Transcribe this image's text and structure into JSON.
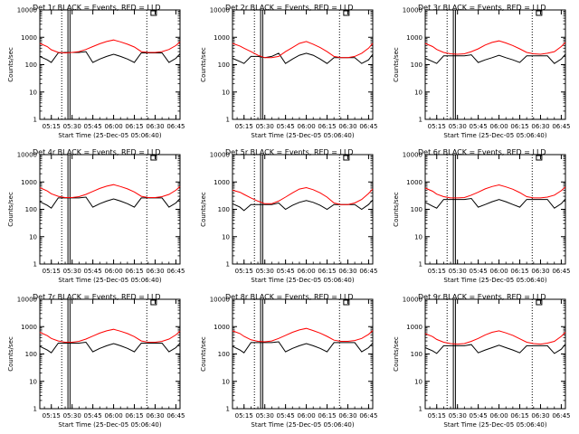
{
  "figure": {
    "title_suffix": " BLACK = Events, RED = LLD",
    "xlabel": "Start Time (25-Dec-05 05:06:40)",
    "ylabel": "Counts/sec",
    "xticks": [
      "05:15",
      "05:30",
      "05:45",
      "06:00",
      "06:15",
      "06:30",
      "06:45"
    ],
    "yticks": [
      "1",
      "10",
      "100",
      "1000",
      "10000"
    ],
    "colors": {
      "events": "#000000",
      "lld": "#ff0000"
    }
  },
  "chart_data": [
    {
      "type": "line",
      "title": "Det 1r",
      "ylim": [
        1,
        10000
      ],
      "yscale": "log",
      "x": [
        "05:06:40",
        "05:12",
        "05:15",
        "05:20",
        "05:25",
        "05:30",
        "05:35",
        "05:40",
        "05:45",
        "05:50",
        "05:55",
        "06:00",
        "06:05",
        "06:10",
        "06:15",
        "06:20",
        "06:25",
        "06:30",
        "06:35",
        "06:40",
        "06:45",
        "06:48"
      ],
      "series": [
        {
          "name": "Events",
          "values": [
            200,
            150,
            120,
            270,
            280,
            280,
            280,
            300,
            120,
            160,
            200,
            240,
            200,
            160,
            120,
            270,
            270,
            270,
            270,
            120,
            170,
            250
          ]
        },
        {
          "name": "LLD",
          "values": [
            600,
            460,
            350,
            280,
            270,
            280,
            300,
            360,
            460,
            580,
            700,
            800,
            680,
            560,
            440,
            300,
            280,
            280,
            300,
            360,
            500,
            680
          ]
        }
      ]
    },
    {
      "type": "line",
      "title": "Det 2r",
      "ylim": [
        1,
        10000
      ],
      "yscale": "log",
      "x": [
        "05:06:40",
        "05:12",
        "05:15",
        "05:20",
        "05:25",
        "05:30",
        "05:35",
        "05:40",
        "05:45",
        "05:50",
        "05:55",
        "06:00",
        "06:05",
        "06:10",
        "06:15",
        "06:20",
        "06:25",
        "06:30",
        "06:35",
        "06:40",
        "06:45",
        "06:48"
      ],
      "series": [
        {
          "name": "Events",
          "values": [
            170,
            130,
            110,
            200,
            200,
            180,
            200,
            260,
            110,
            160,
            220,
            260,
            220,
            160,
            110,
            180,
            180,
            180,
            180,
            110,
            150,
            240
          ]
        },
        {
          "name": "LLD",
          "values": [
            600,
            480,
            400,
            300,
            220,
            180,
            180,
            200,
            300,
            420,
            600,
            700,
            560,
            420,
            300,
            200,
            180,
            180,
            200,
            260,
            400,
            600
          ]
        }
      ]
    },
    {
      "type": "line",
      "title": "Det 3r",
      "ylim": [
        1,
        10000
      ],
      "yscale": "log",
      "x": [
        "05:06:40",
        "05:12",
        "05:15",
        "05:20",
        "05:25",
        "05:30",
        "05:35",
        "05:40",
        "05:45",
        "05:50",
        "05:55",
        "06:00",
        "06:05",
        "06:10",
        "06:15",
        "06:20",
        "06:25",
        "06:30",
        "06:35",
        "06:40",
        "06:45",
        "06:48"
      ],
      "series": [
        {
          "name": "Events",
          "values": [
            170,
            130,
            110,
            210,
            210,
            210,
            210,
            230,
            120,
            150,
            180,
            220,
            180,
            150,
            120,
            210,
            210,
            210,
            210,
            110,
            160,
            240
          ]
        },
        {
          "name": "LLD",
          "values": [
            600,
            460,
            360,
            280,
            250,
            240,
            250,
            300,
            380,
            520,
            650,
            740,
            620,
            500,
            380,
            280,
            250,
            240,
            260,
            300,
            460,
            650
          ]
        }
      ]
    },
    {
      "type": "line",
      "title": "Det 4r",
      "ylim": [
        1,
        10000
      ],
      "yscale": "log",
      "x": [
        "05:06:40",
        "05:12",
        "05:15",
        "05:20",
        "05:25",
        "05:30",
        "05:35",
        "05:40",
        "05:45",
        "05:50",
        "05:55",
        "06:00",
        "06:05",
        "06:10",
        "06:15",
        "06:20",
        "06:25",
        "06:30",
        "06:35",
        "06:40",
        "06:45",
        "06:48"
      ],
      "series": [
        {
          "name": "Events",
          "values": [
            190,
            140,
            110,
            260,
            260,
            260,
            260,
            280,
            120,
            160,
            200,
            240,
            200,
            160,
            120,
            260,
            260,
            260,
            260,
            120,
            170,
            250
          ]
        },
        {
          "name": "LLD",
          "values": [
            620,
            470,
            370,
            300,
            270,
            270,
            290,
            350,
            450,
            580,
            700,
            800,
            680,
            560,
            430,
            300,
            270,
            270,
            290,
            350,
            500,
            680
          ]
        }
      ]
    },
    {
      "type": "line",
      "title": "Det 5r",
      "ylim": [
        1,
        10000
      ],
      "yscale": "log",
      "x": [
        "05:06:40",
        "05:12",
        "05:15",
        "05:20",
        "05:25",
        "05:30",
        "05:35",
        "05:40",
        "05:45",
        "05:50",
        "05:55",
        "06:00",
        "06:05",
        "06:10",
        "06:15",
        "06:20",
        "06:25",
        "06:30",
        "06:35",
        "06:40",
        "06:45",
        "06:48"
      ],
      "series": [
        {
          "name": "Events",
          "values": [
            160,
            120,
            90,
            150,
            150,
            150,
            150,
            170,
            100,
            140,
            180,
            210,
            180,
            140,
            100,
            150,
            150,
            150,
            150,
            100,
            150,
            220
          ]
        },
        {
          "name": "LLD",
          "values": [
            500,
            420,
            350,
            260,
            200,
            160,
            160,
            200,
            280,
            400,
            550,
            620,
            520,
            400,
            280,
            170,
            150,
            150,
            170,
            230,
            380,
            560
          ]
        }
      ]
    },
    {
      "type": "line",
      "title": "Det 6r",
      "ylim": [
        1,
        10000
      ],
      "yscale": "log",
      "x": [
        "05:06:40",
        "05:12",
        "05:15",
        "05:20",
        "05:25",
        "05:30",
        "05:35",
        "05:40",
        "05:45",
        "05:50",
        "05:55",
        "06:00",
        "06:05",
        "06:10",
        "06:15",
        "06:20",
        "06:25",
        "06:30",
        "06:35",
        "06:40",
        "06:45",
        "06:48"
      ],
      "series": [
        {
          "name": "Events",
          "values": [
            180,
            130,
            110,
            230,
            230,
            230,
            230,
            250,
            120,
            150,
            190,
            230,
            190,
            150,
            120,
            230,
            230,
            230,
            230,
            110,
            160,
            240
          ]
        },
        {
          "name": "LLD",
          "values": [
            600,
            460,
            360,
            290,
            260,
            260,
            270,
            330,
            420,
            560,
            680,
            780,
            660,
            540,
            410,
            290,
            260,
            260,
            280,
            330,
            480,
            660
          ]
        }
      ]
    },
    {
      "type": "line",
      "title": "Det 7r",
      "ylim": [
        1,
        10000
      ],
      "yscale": "log",
      "x": [
        "05:06:40",
        "05:12",
        "05:15",
        "05:20",
        "05:25",
        "05:30",
        "05:35",
        "05:40",
        "05:45",
        "05:50",
        "05:55",
        "06:00",
        "06:05",
        "06:10",
        "06:15",
        "06:20",
        "06:25",
        "06:30",
        "06:35",
        "06:40",
        "06:45",
        "06:48"
      ],
      "series": [
        {
          "name": "Events",
          "values": [
            190,
            140,
            110,
            250,
            250,
            250,
            250,
            270,
            120,
            160,
            200,
            240,
            200,
            160,
            120,
            250,
            250,
            250,
            250,
            120,
            170,
            250
          ]
        },
        {
          "name": "LLD",
          "values": [
            620,
            470,
            370,
            300,
            270,
            270,
            290,
            350,
            450,
            580,
            700,
            800,
            680,
            560,
            430,
            300,
            270,
            270,
            290,
            350,
            500,
            680
          ]
        }
      ]
    },
    {
      "type": "line",
      "title": "Det 8r",
      "ylim": [
        1,
        10000
      ],
      "yscale": "log",
      "x": [
        "05:06:40",
        "05:12",
        "05:15",
        "05:20",
        "05:25",
        "05:30",
        "05:35",
        "05:40",
        "05:45",
        "05:50",
        "05:55",
        "06:00",
        "06:05",
        "06:10",
        "06:15",
        "06:20",
        "06:25",
        "06:30",
        "06:35",
        "06:40",
        "06:45",
        "06:48"
      ],
      "series": [
        {
          "name": "Events",
          "values": [
            190,
            140,
            110,
            260,
            260,
            260,
            260,
            280,
            120,
            160,
            200,
            240,
            200,
            160,
            120,
            260,
            260,
            260,
            260,
            120,
            170,
            250
          ]
        },
        {
          "name": "LLD",
          "values": [
            700,
            560,
            440,
            330,
            290,
            280,
            300,
            370,
            480,
            620,
            760,
            860,
            720,
            580,
            440,
            320,
            290,
            290,
            310,
            370,
            520,
            720
          ]
        }
      ]
    },
    {
      "type": "line",
      "title": "Det 9r",
      "ylim": [
        1,
        10000
      ],
      "yscale": "log",
      "x": [
        "05:06:40",
        "05:12",
        "05:15",
        "05:20",
        "05:25",
        "05:30",
        "05:35",
        "05:40",
        "05:45",
        "05:50",
        "05:55",
        "06:00",
        "06:05",
        "06:10",
        "06:15",
        "06:20",
        "06:25",
        "06:30",
        "06:35",
        "06:40",
        "06:45",
        "06:48"
      ],
      "series": [
        {
          "name": "Events",
          "values": [
            170,
            130,
            105,
            200,
            200,
            200,
            200,
            220,
            110,
            140,
            170,
            210,
            170,
            140,
            110,
            200,
            200,
            200,
            200,
            105,
            150,
            230
          ]
        },
        {
          "name": "LLD",
          "values": [
            560,
            430,
            340,
            270,
            240,
            230,
            240,
            290,
            370,
            500,
            620,
            700,
            590,
            480,
            360,
            270,
            240,
            230,
            250,
            290,
            440,
            620
          ]
        }
      ]
    }
  ]
}
